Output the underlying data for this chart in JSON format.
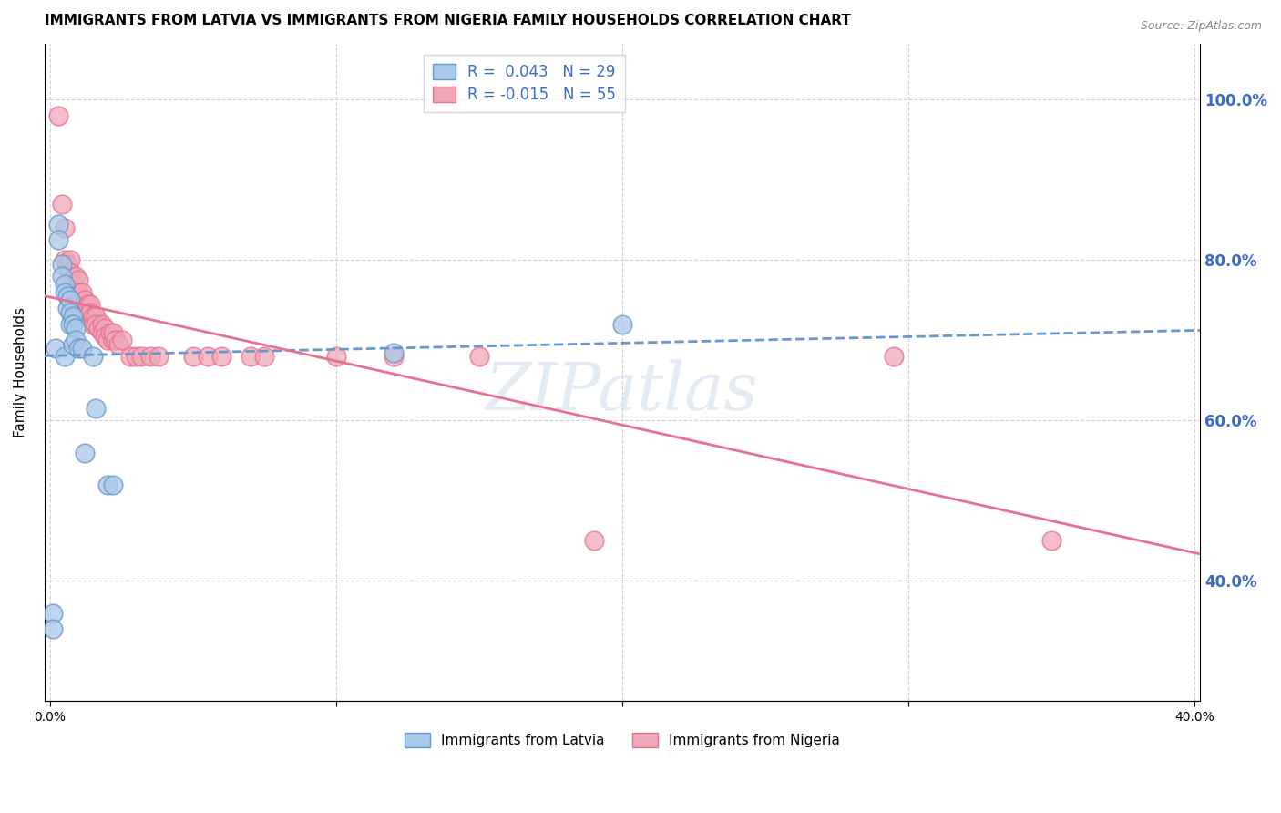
{
  "title": "IMMIGRANTS FROM LATVIA VS IMMIGRANTS FROM NIGERIA FAMILY HOUSEHOLDS CORRELATION CHART",
  "source": "Source: ZipAtlas.com",
  "ylabel": "Family Households",
  "ytick_labels": [
    "100.0%",
    "80.0%",
    "60.0%",
    "40.0%"
  ],
  "ytick_values": [
    1.0,
    0.8,
    0.6,
    0.4
  ],
  "xlim": [
    -0.002,
    0.402
  ],
  "ylim": [
    0.25,
    1.07
  ],
  "legend_r_entries": [
    {
      "r_val": "0.043",
      "n_val": "29",
      "color": "#aac8e8"
    },
    {
      "r_val": "-0.015",
      "n_val": "55",
      "color": "#f0a8b8"
    }
  ],
  "latvia_x": [
    0.001,
    0.001,
    0.002,
    0.003,
    0.003,
    0.004,
    0.004,
    0.005,
    0.005,
    0.005,
    0.006,
    0.006,
    0.007,
    0.007,
    0.007,
    0.008,
    0.008,
    0.008,
    0.009,
    0.009,
    0.01,
    0.011,
    0.012,
    0.015,
    0.016,
    0.02,
    0.022,
    0.12,
    0.2
  ],
  "latvia_y": [
    0.36,
    0.34,
    0.69,
    0.845,
    0.825,
    0.795,
    0.78,
    0.77,
    0.76,
    0.68,
    0.755,
    0.74,
    0.75,
    0.735,
    0.72,
    0.73,
    0.72,
    0.695,
    0.715,
    0.7,
    0.69,
    0.69,
    0.56,
    0.68,
    0.615,
    0.52,
    0.52,
    0.685,
    0.72
  ],
  "nigeria_x": [
    0.003,
    0.004,
    0.005,
    0.005,
    0.006,
    0.007,
    0.007,
    0.008,
    0.008,
    0.009,
    0.009,
    0.01,
    0.01,
    0.01,
    0.011,
    0.011,
    0.011,
    0.012,
    0.012,
    0.013,
    0.013,
    0.014,
    0.014,
    0.015,
    0.015,
    0.016,
    0.016,
    0.017,
    0.018,
    0.018,
    0.019,
    0.019,
    0.02,
    0.021,
    0.022,
    0.022,
    0.023,
    0.024,
    0.025,
    0.028,
    0.03,
    0.032,
    0.035,
    0.038,
    0.05,
    0.055,
    0.06,
    0.07,
    0.075,
    0.1,
    0.12,
    0.15,
    0.19,
    0.295,
    0.35
  ],
  "nigeria_y": [
    0.98,
    0.87,
    0.84,
    0.8,
    0.795,
    0.8,
    0.785,
    0.77,
    0.76,
    0.78,
    0.76,
    0.775,
    0.76,
    0.745,
    0.76,
    0.748,
    0.74,
    0.75,
    0.735,
    0.745,
    0.73,
    0.745,
    0.735,
    0.73,
    0.72,
    0.73,
    0.72,
    0.715,
    0.72,
    0.71,
    0.715,
    0.705,
    0.7,
    0.71,
    0.7,
    0.71,
    0.7,
    0.695,
    0.7,
    0.68,
    0.68,
    0.68,
    0.68,
    0.68,
    0.68,
    0.68,
    0.68,
    0.68,
    0.68,
    0.68,
    0.68,
    0.68,
    0.45,
    0.68,
    0.45
  ],
  "latvia_color": "#6699cc",
  "nigeria_color": "#e87090",
  "latvia_scatter_face": "#aac8e8",
  "nigeria_scatter_face": "#f0a8b8",
  "trend_latvia_color": "#6699cc",
  "trend_nigeria_color": "#e87090",
  "background_color": "#ffffff",
  "grid_color": "#cccccc",
  "title_fontsize": 11,
  "axis_fontsize": 11,
  "tick_fontsize": 10,
  "right_tick_color": "#3a6bc9",
  "watermark": "ZIPatlas"
}
